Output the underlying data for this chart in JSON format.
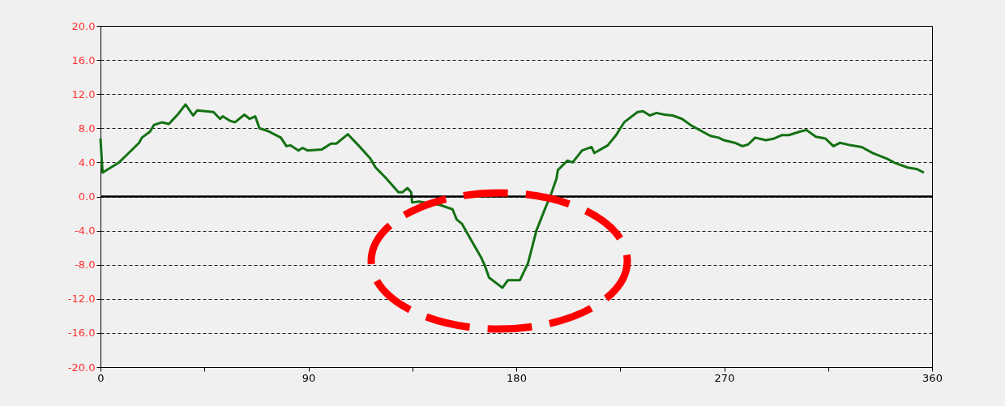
{
  "chart_data": {
    "type": "line",
    "x": [
      0,
      0.9,
      8.0,
      12.6,
      16.7,
      17.9,
      21.4,
      23.2,
      26.7,
      29.6,
      33.7,
      36.8,
      40.1,
      41.9,
      48.9,
      51.8,
      52.9,
      55.9,
      58.2,
      62.3,
      64.6,
      67.0,
      68.8,
      72.3,
      78.1,
      80.5,
      82.2,
      85.7,
      87.5,
      89.6,
      95.7,
      99.8,
      102.1,
      107.1,
      112.0,
      116.7,
      119.1,
      123.8,
      129.0,
      130.8,
      132.9,
      134.5,
      134.9,
      137.8,
      147.1,
      152.4,
      154.2,
      156.5,
      160.0,
      164.7,
      166.4,
      168.2,
      174.0,
      176.4,
      181.6,
      185.1,
      188.7,
      192.2,
      195.1,
      197.4,
      198.0,
      202.1,
      204.4,
      208.5,
      212.6,
      213.8,
      219.6,
      223.2,
      226.7,
      232.5,
      234.9,
      237.8,
      240.7,
      244.2,
      247.7,
      251.8,
      255.9,
      264.1,
      267.6,
      269.9,
      274.6,
      277.9,
      280.4,
      283.4,
      288.1,
      291.6,
      295.1,
      298.0,
      302.7,
      305.6,
      309.7,
      313.8,
      317.3,
      320.2,
      324.9,
      329.6,
      334.3,
      340.7,
      344.2,
      349.5,
      353.6,
      356.5
    ],
    "series": [
      {
        "color": "#137113",
        "values": [
          6.8,
          2.8,
          4.0,
          5.2,
          6.3,
          6.9,
          7.6,
          8.4,
          8.7,
          8.5,
          9.7,
          10.8,
          9.5,
          10.1,
          9.9,
          9.1,
          9.4,
          8.9,
          8.7,
          9.6,
          9.1,
          9.4,
          8.0,
          7.7,
          6.9,
          5.9,
          6.0,
          5.4,
          5.7,
          5.4,
          5.5,
          6.2,
          6.2,
          7.3,
          5.9,
          4.5,
          3.4,
          2.1,
          0.5,
          0.5,
          1.0,
          0.5,
          -0.7,
          -0.6,
          -1.0,
          -1.5,
          -2.7,
          -3.2,
          -4.9,
          -7.1,
          -8.1,
          -9.5,
          -10.7,
          -9.8,
          -9.8,
          -7.8,
          -4.0,
          -1.6,
          0.3,
          2.1,
          3.1,
          4.2,
          4.0,
          5.4,
          5.8,
          5.1,
          6.0,
          7.2,
          8.7,
          9.9,
          10.0,
          9.5,
          9.8,
          9.6,
          9.5,
          9.1,
          8.3,
          7.1,
          6.9,
          6.6,
          6.3,
          5.9,
          6.1,
          6.9,
          6.6,
          6.8,
          7.2,
          7.2,
          7.6,
          7.8,
          7.0,
          6.8,
          5.9,
          6.3,
          6.0,
          5.8,
          5.1,
          4.4,
          3.9,
          3.4,
          3.2,
          2.8
        ]
      }
    ],
    "xlim": [
      0,
      360
    ],
    "xticks": [
      0,
      {
        "value": 45,
        "label": null
      },
      90,
      {
        "value": 135,
        "label": null
      },
      180,
      {
        "value": 225,
        "label": null
      },
      270,
      {
        "value": 315,
        "label": null
      },
      360
    ],
    "ylim": [
      -20,
      20
    ],
    "yticks": [
      {
        "value": -20,
        "label": "-20.0"
      },
      {
        "value": -16,
        "label": "-16.0"
      },
      {
        "value": -12,
        "label": "-12.0"
      },
      {
        "value": -8,
        "label": "-8.0"
      },
      {
        "value": -4,
        "label": "-4.0"
      },
      {
        "value": 0,
        "label": "0.0"
      },
      {
        "value": 4,
        "label": "4.0"
      },
      {
        "value": 8,
        "label": "8.0"
      },
      {
        "value": 12,
        "label": "12.0"
      },
      {
        "value": 16,
        "label": "16.0"
      },
      {
        "value": 20,
        "label": "20.0"
      }
    ],
    "grid": "y",
    "ref_lines": [
      {
        "axis": "y",
        "value": 0,
        "color": "#000000"
      }
    ]
  }
}
